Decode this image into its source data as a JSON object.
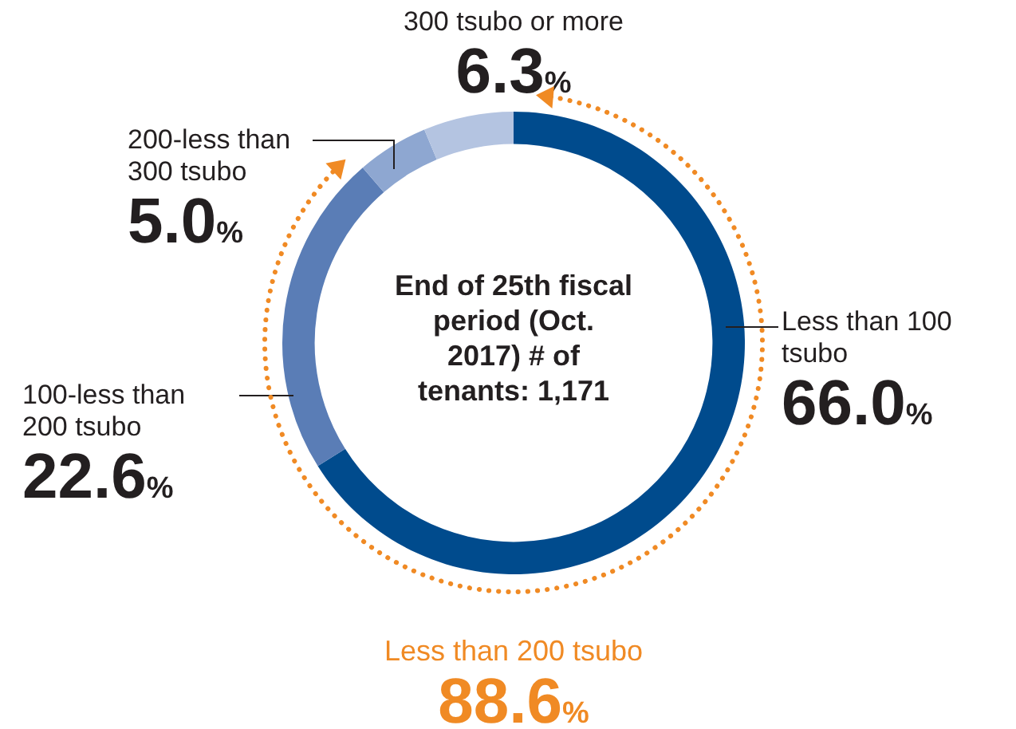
{
  "chart_data": {
    "type": "donut",
    "categories": [
      "Less than 100 tsubo",
      "100-less than 200 tsubo",
      "200-less than 300 tsubo",
      "300 tsubo or more"
    ],
    "values": [
      66.0,
      22.6,
      5.0,
      6.3
    ],
    "value_labels": [
      "66.0%",
      "22.6%",
      "5.0%",
      "6.3%"
    ],
    "colors": [
      "#004b8d",
      "#5a7db6",
      "#8ea7d1",
      "#b4c4e1"
    ],
    "annotations": [
      "End of 25th fiscal period (Oct. 2017) # of tenants: 1,171",
      "Less than 200 tsubo\n88.6%"
    ],
    "legend": false
  }
}
